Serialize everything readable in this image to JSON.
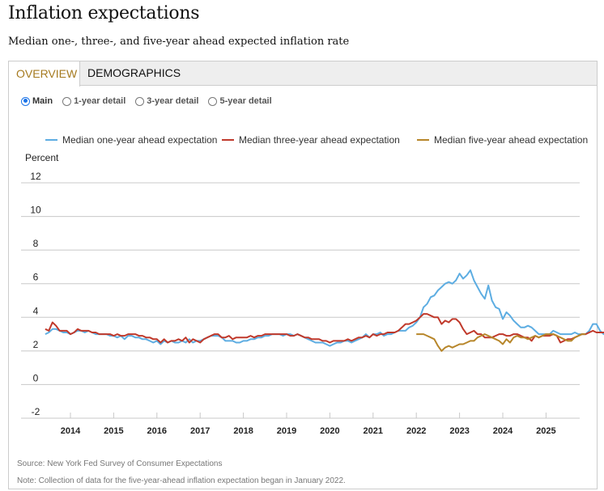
{
  "header": {
    "title": "Inflation expectations",
    "subtitle": "Median one-, three-, and five-year ahead expected inflation rate"
  },
  "tabs": [
    {
      "label": "OVERVIEW",
      "active": true
    },
    {
      "label": "DEMOGRAPHICS",
      "active": false
    }
  ],
  "radio_options": [
    {
      "label": "Main",
      "checked": true
    },
    {
      "label": "1-year detail",
      "checked": false
    },
    {
      "label": "3-year detail",
      "checked": false
    },
    {
      "label": "5-year detail",
      "checked": false
    }
  ],
  "footer": {
    "source": "Source: New York Fed Survey of Consumer Expectations",
    "note": "Note: Collection of data for the five-year-ahead inflation expectation began in January 2022."
  },
  "chart_data": {
    "type": "line",
    "title": "Inflation expectations",
    "ylabel": "Percent",
    "xlabel": "",
    "ylim": [
      -2,
      12
    ],
    "yticks": [
      -2,
      0,
      2,
      4,
      6,
      8,
      10,
      12
    ],
    "xticks": [
      "2014",
      "2015",
      "2016",
      "2017",
      "2018",
      "2019",
      "2020",
      "2021",
      "2022",
      "2023",
      "2024",
      "2025"
    ],
    "x_start": "2013-06",
    "frequency": "monthly",
    "grid": true,
    "legend_position": "top",
    "series": [
      {
        "name": "Median one-year ahead expectation",
        "color": "#5dade2",
        "start": "2013-06",
        "values": [
          3.0,
          3.1,
          3.3,
          3.3,
          3.2,
          3.1,
          3.1,
          3.0,
          3.1,
          3.2,
          3.2,
          3.1,
          3.2,
          3.1,
          3.0,
          3.0,
          3.0,
          3.0,
          2.9,
          2.9,
          2.8,
          2.9,
          2.7,
          2.9,
          2.9,
          2.8,
          2.8,
          2.7,
          2.7,
          2.6,
          2.5,
          2.6,
          2.4,
          2.6,
          2.5,
          2.6,
          2.5,
          2.5,
          2.6,
          2.5,
          2.7,
          2.5,
          2.6,
          2.6,
          2.7,
          2.8,
          2.9,
          2.9,
          2.9,
          2.8,
          2.6,
          2.6,
          2.6,
          2.5,
          2.5,
          2.6,
          2.6,
          2.7,
          2.7,
          2.8,
          2.8,
          2.9,
          2.9,
          3.0,
          3.0,
          3.0,
          2.9,
          3.0,
          3.0,
          2.9,
          3.0,
          2.9,
          2.8,
          2.7,
          2.6,
          2.5,
          2.5,
          2.5,
          2.4,
          2.3,
          2.4,
          2.5,
          2.5,
          2.6,
          2.6,
          2.5,
          2.6,
          2.7,
          2.8,
          3.0,
          2.8,
          3.0,
          3.0,
          3.1,
          2.9,
          3.0,
          3.0,
          3.1,
          3.2,
          3.2,
          3.2,
          3.4,
          3.5,
          3.7,
          4.0,
          4.6,
          4.8,
          5.2,
          5.3,
          5.6,
          5.8,
          6.0,
          6.1,
          6.0,
          6.2,
          6.6,
          6.3,
          6.5,
          6.8,
          6.2,
          5.8,
          5.4,
          5.1,
          5.9,
          5.0,
          4.6,
          4.5,
          3.9,
          4.3,
          4.1,
          3.8,
          3.6,
          3.4,
          3.4,
          3.5,
          3.4,
          3.2,
          3.0,
          3.0,
          3.0,
          3.0,
          3.2,
          3.1,
          3.0,
          3.0,
          3.0,
          3.0,
          3.1,
          3.0,
          3.0,
          3.0,
          3.2,
          3.6,
          3.6,
          3.2,
          3.0,
          3.1,
          3.2,
          3.3,
          3.4
        ]
      },
      {
        "name": "Median three-year ahead expectation",
        "color": "#c0392b",
        "start": "2013-06",
        "values": [
          3.3,
          3.2,
          3.7,
          3.5,
          3.2,
          3.2,
          3.2,
          3.0,
          3.1,
          3.3,
          3.2,
          3.2,
          3.2,
          3.1,
          3.1,
          3.0,
          3.0,
          3.0,
          3.0,
          2.9,
          3.0,
          2.9,
          2.9,
          3.0,
          3.0,
          3.0,
          2.9,
          2.9,
          2.8,
          2.8,
          2.7,
          2.7,
          2.5,
          2.7,
          2.5,
          2.6,
          2.6,
          2.7,
          2.6,
          2.8,
          2.5,
          2.7,
          2.6,
          2.5,
          2.7,
          2.8,
          2.9,
          3.0,
          3.0,
          2.8,
          2.8,
          2.9,
          2.7,
          2.8,
          2.8,
          2.8,
          2.8,
          2.9,
          2.8,
          2.9,
          2.9,
          3.0,
          3.0,
          3.0,
          3.0,
          3.0,
          3.0,
          3.0,
          2.9,
          2.9,
          3.0,
          2.9,
          2.8,
          2.8,
          2.7,
          2.7,
          2.7,
          2.6,
          2.6,
          2.5,
          2.6,
          2.6,
          2.6,
          2.6,
          2.7,
          2.6,
          2.7,
          2.8,
          2.8,
          2.9,
          2.8,
          3.0,
          2.9,
          3.0,
          3.0,
          3.1,
          3.1,
          3.1,
          3.2,
          3.4,
          3.6,
          3.6,
          3.7,
          3.8,
          4.0,
          4.2,
          4.2,
          4.1,
          4.0,
          4.0,
          3.6,
          3.8,
          3.7,
          3.9,
          3.9,
          3.7,
          3.3,
          3.0,
          3.1,
          3.2,
          3.0,
          3.0,
          2.8,
          2.8,
          2.8,
          2.9,
          3.0,
          3.0,
          2.9,
          2.9,
          3.0,
          3.0,
          2.9,
          2.8,
          2.8,
          2.6,
          2.9,
          2.8,
          2.9,
          2.9,
          2.9,
          3.0,
          2.9,
          2.5,
          2.6,
          2.7,
          2.7,
          2.8,
          2.9,
          3.0,
          3.0,
          3.1,
          3.2,
          3.1,
          3.1,
          3.1,
          3.1,
          3.1,
          3.1,
          3.1
        ]
      },
      {
        "name": "Median five-year ahead expectation",
        "color": "#b7862a",
        "start": "2022-01",
        "values": [
          3.0,
          3.0,
          3.0,
          2.9,
          2.8,
          2.7,
          2.3,
          2.0,
          2.2,
          2.3,
          2.2,
          2.3,
          2.4,
          2.4,
          2.5,
          2.6,
          2.6,
          2.8,
          2.9,
          3.0,
          2.9,
          2.8,
          2.7,
          2.6,
          2.4,
          2.7,
          2.5,
          2.8,
          2.9,
          2.8,
          2.8,
          2.7,
          2.8,
          2.9,
          2.8,
          2.9,
          3.0,
          3.0,
          3.0,
          2.9,
          2.8,
          2.7,
          2.6,
          2.6,
          2.8,
          2.9,
          3.0,
          3.0
        ]
      }
    ]
  }
}
